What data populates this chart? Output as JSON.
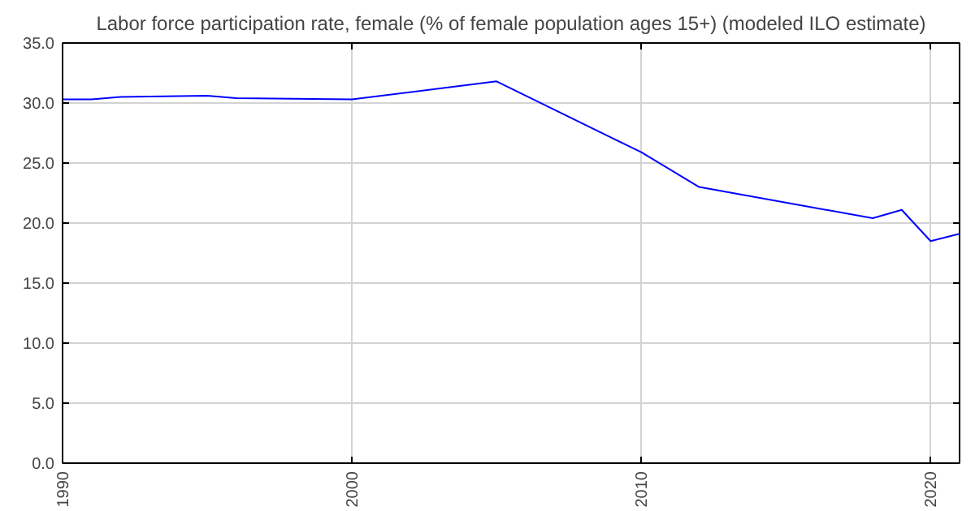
{
  "chart_data": {
    "type": "line",
    "title": "Labor force participation rate, female (% of female population ages 15+) (modeled ILO estimate)",
    "x": [
      1990,
      1991,
      1992,
      1995,
      1996,
      2000,
      2005,
      2010,
      2012,
      2018,
      2019,
      2020,
      2021
    ],
    "series": [
      {
        "color": "#0000ff",
        "values": [
          30.3,
          30.3,
          30.5,
          30.6,
          30.4,
          30.3,
          31.8,
          25.9,
          23.0,
          20.4,
          21.1,
          18.5,
          19.1
        ]
      }
    ],
    "xlim": [
      1990,
      2021
    ],
    "xticks": [
      1990,
      2000,
      2010,
      2020
    ],
    "ylim": [
      0,
      35
    ],
    "yticks": [
      {
        "value": 0,
        "label": "0.0"
      },
      {
        "value": 5,
        "label": "5.0"
      },
      {
        "value": 10,
        "label": "10.0"
      },
      {
        "value": 15,
        "label": "15.0"
      },
      {
        "value": 20,
        "label": "20.0"
      },
      {
        "value": 25,
        "label": "25.0"
      },
      {
        "value": 30,
        "label": "30.0"
      },
      {
        "value": 35,
        "label": "35.0"
      }
    ],
    "grid": true,
    "marker": "none",
    "line_style": "solid"
  }
}
